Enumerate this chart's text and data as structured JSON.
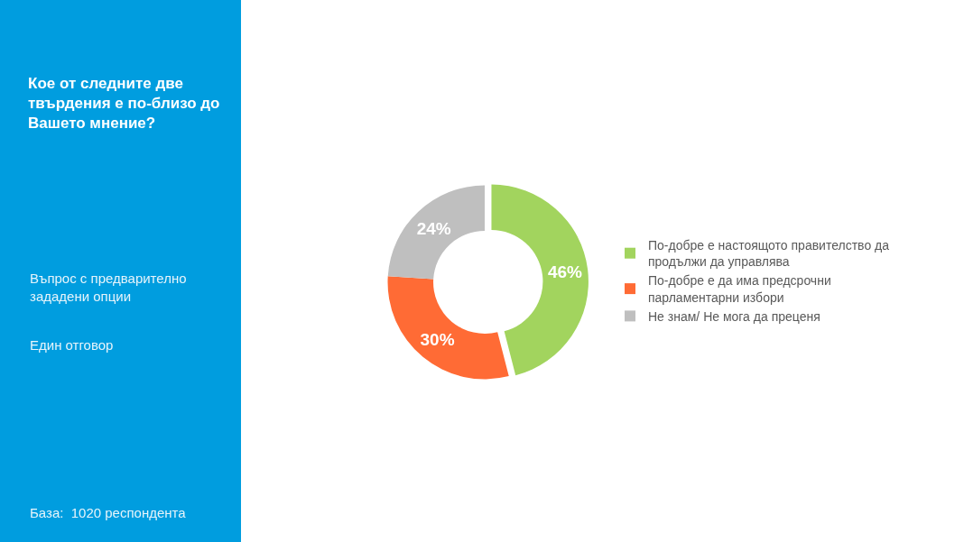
{
  "chart_data": {
    "type": "donut",
    "title": "Кое от следните две твърдения е по-близо до Вашето мнение?",
    "subtitle": "Въпрос с предварително зададени опции",
    "annotations": [
      "Един отговор",
      "База:  1020 респондента"
    ],
    "categories": [
      "По-добре е настоящото правителство да продължи да управлява",
      "По-добре е да има предсрочни парламентарни избори",
      "Не знам/ Не мога да преценя"
    ],
    "values": [
      46,
      30,
      24
    ],
    "value_labels": [
      "46%",
      "30%",
      "24%"
    ],
    "colors": [
      "#a2d45e",
      "#ff6b35",
      "#bfbfbf"
    ],
    "legend": "right"
  }
}
